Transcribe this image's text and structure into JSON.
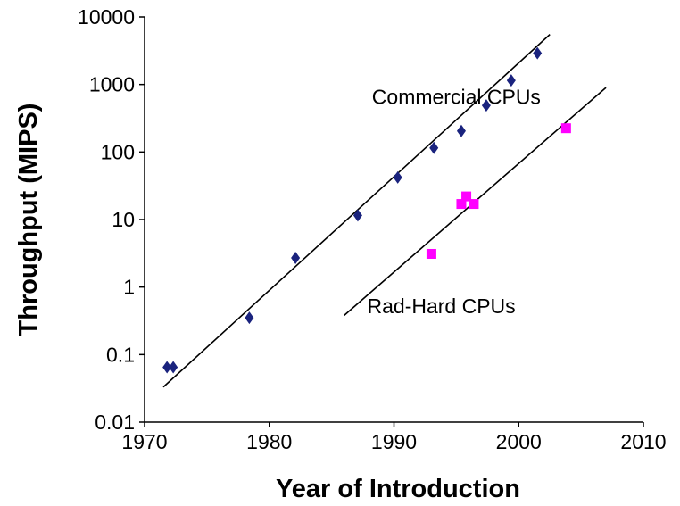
{
  "chart_data": {
    "type": "scatter",
    "title": "",
    "xlabel": "Year of Introduction",
    "ylabel": "Throughput (MIPS)",
    "xlim": [
      1970,
      2010
    ],
    "ylim": [
      0.01,
      10000
    ],
    "yscale": "log",
    "grid": false,
    "x_ticks": [
      1970,
      1980,
      1990,
      2000,
      2010
    ],
    "x_tick_labels": [
      "1970",
      "1980",
      "1990",
      "2000",
      "2010"
    ],
    "y_ticks": [
      0.01,
      0.1,
      1,
      10,
      100,
      1000,
      10000
    ],
    "y_tick_labels": [
      "0.01",
      "0.1",
      "1",
      "10",
      "100",
      "1000",
      "10000"
    ],
    "series": [
      {
        "name": "Commercial CPUs",
        "marker": "diamond",
        "color": "#1a237e",
        "points": [
          {
            "x": 1971.8,
            "y": 0.065
          },
          {
            "x": 1972.3,
            "y": 0.065
          },
          {
            "x": 1978.4,
            "y": 0.35
          },
          {
            "x": 1982.1,
            "y": 2.7
          },
          {
            "x": 1987.1,
            "y": 11.5
          },
          {
            "x": 1990.3,
            "y": 42
          },
          {
            "x": 1993.2,
            "y": 115
          },
          {
            "x": 1995.4,
            "y": 205
          },
          {
            "x": 1997.4,
            "y": 490
          },
          {
            "x": 1999.4,
            "y": 1150
          },
          {
            "x": 2001.5,
            "y": 2900
          }
        ],
        "trendline": {
          "x": [
            1971.5,
            2002.5
          ],
          "y": [
            0.033,
            5500
          ]
        }
      },
      {
        "name": "Rad-Hard CPUs",
        "marker": "square",
        "color": "#ff00ff",
        "points": [
          {
            "x": 1993.0,
            "y": 3.1
          },
          {
            "x": 1995.4,
            "y": 17
          },
          {
            "x": 1995.8,
            "y": 22
          },
          {
            "x": 1996.4,
            "y": 17
          },
          {
            "x": 2003.8,
            "y": 225
          }
        ],
        "trendline": {
          "x": [
            1986.0,
            2007.0
          ],
          "y": [
            0.38,
            900
          ]
        }
      }
    ],
    "annotations": [
      {
        "text": "Commercial CPUs",
        "x": 1995.0,
        "y": 1000
      },
      {
        "text": "Rad-Hard CPUs",
        "x": 1993.8,
        "y": 0.8
      }
    ]
  }
}
